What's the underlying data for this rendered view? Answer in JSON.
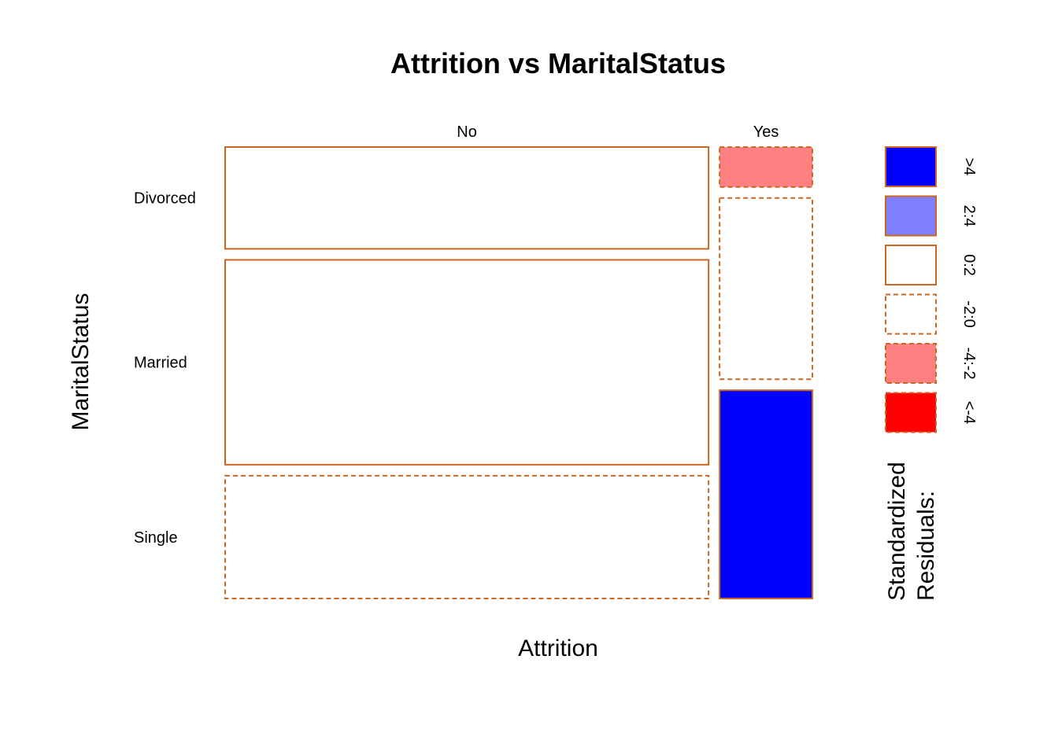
{
  "chart_data": {
    "type": "mosaic",
    "title": "Attrition vs MaritalStatus",
    "xlabel": "Attrition",
    "ylabel": "MaritalStatus",
    "x_categories": [
      "No",
      "Yes"
    ],
    "y_categories": [
      "Divorced",
      "Married",
      "Single"
    ],
    "x_proportions": [
      0.839,
      0.161
    ],
    "cells": [
      {
        "x": "No",
        "y": "Divorced",
        "proportion": 0.237,
        "residual_class": "0:2"
      },
      {
        "x": "No",
        "y": "Married",
        "proportion": 0.477,
        "residual_class": "0:2"
      },
      {
        "x": "No",
        "y": "Single",
        "proportion": 0.286,
        "residual_class": "-2:0"
      },
      {
        "x": "Yes",
        "y": "Divorced",
        "proportion": 0.093,
        "residual_class": "-4:-2"
      },
      {
        "x": "Yes",
        "y": "Married",
        "proportion": 0.422,
        "residual_class": "-2:0"
      },
      {
        "x": "Yes",
        "y": "Single",
        "proportion": 0.485,
        "residual_class": ">4"
      }
    ],
    "legend": {
      "title_lines": [
        "Standardized",
        "Residuals:"
      ],
      "placement": "right",
      "items": [
        {
          "label": ">4",
          "fill": "#0000ff",
          "dashed": false
        },
        {
          "label": "2:4",
          "fill": "#8080ff",
          "dashed": false
        },
        {
          "label": "0:2",
          "fill": "#ffffff",
          "dashed": false
        },
        {
          "label": "-2:0",
          "fill": "#ffffff",
          "dashed": true
        },
        {
          "label": "-4:-2",
          "fill": "#ff8080",
          "dashed": true
        },
        {
          "label": "<-4",
          "fill": "#ff0000",
          "dashed": true
        }
      ]
    },
    "border_color": "#cc6622"
  }
}
